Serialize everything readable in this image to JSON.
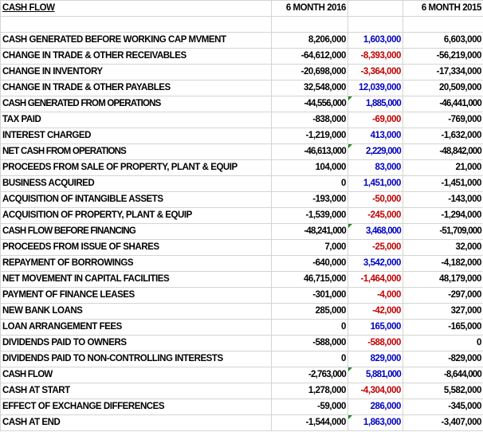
{
  "header": {
    "title": "CASH FLOW",
    "col1": "6 MONTH 2016",
    "col2": "",
    "col3": "6 MONTH 2015"
  },
  "colors": {
    "positive_diff": "#0000c0",
    "negative_diff": "#c00000",
    "comment_marker": "#1e8a1e"
  },
  "rows": [
    {
      "label": "CASH GENERATED BEFORE WORKING CAP MVMENT",
      "y2016": "8,206,000",
      "diff": "1,603,000",
      "y2015": "6,603,000"
    },
    {
      "label": "CHANGE IN TRADE & OTHER RECEIVABLES",
      "y2016": "-64,612,000",
      "diff": "-8,393,000",
      "y2015": "-56,219,000"
    },
    {
      "label": "CHANGE IN INVENTORY",
      "y2016": "-20,698,000",
      "diff": "-3,364,000",
      "y2015": "-17,334,000"
    },
    {
      "label": "CHANGE IN TRADE & OTHER PAYABLES",
      "y2016": "32,548,000",
      "diff": "12,039,000",
      "y2015": "20,509,000"
    },
    {
      "label": "CASH GENERATED FROM OPERATIONS",
      "y2016": "-44,556,000",
      "diff": "1,885,000",
      "y2015": "-46,441,000",
      "total": true
    },
    {
      "label": "TAX PAID",
      "y2016": "-838,000",
      "diff": "-69,000",
      "y2015": "-769,000"
    },
    {
      "label": "INTEREST CHARGED",
      "y2016": "-1,219,000",
      "diff": "413,000",
      "y2015": "-1,632,000"
    },
    {
      "label": "NET CASH FROM OPERATIONS",
      "y2016": "-46,613,000",
      "diff": "2,229,000",
      "y2015": "-48,842,000",
      "total": true
    },
    {
      "label": "PROCEEDS FROM SALE OF PROPERTY, PLANT & EQUIP",
      "y2016": "104,000",
      "diff": "83,000",
      "y2015": "21,000"
    },
    {
      "label": "BUSINESS ACQUIRED",
      "y2016": "0",
      "diff": "1,451,000",
      "y2015": "-1,451,000"
    },
    {
      "label": "ACQUISITION OF INTANGIBLE ASSETS",
      "y2016": "-193,000",
      "diff": "-50,000",
      "y2015": "-143,000"
    },
    {
      "label": "ACQUISITION OF PROPERTY, PLANT & EQUIP",
      "y2016": "-1,539,000",
      "diff": "-245,000",
      "y2015": "-1,294,000"
    },
    {
      "label": "CASH FLOW BEFORE FINANCING",
      "y2016": "-48,241,000",
      "diff": "3,468,000",
      "y2015": "-51,709,000",
      "total": true
    },
    {
      "label": "PROCEEDS FROM ISSUE OF SHARES",
      "y2016": "7,000",
      "diff": "-25,000",
      "y2015": "32,000"
    },
    {
      "label": "REPAYMENT OF BORROWINGS",
      "y2016": "-640,000",
      "diff": "3,542,000",
      "y2015": "-4,182,000"
    },
    {
      "label": "NET MOVEMENT IN CAPITAL FACILITIES",
      "y2016": "46,715,000",
      "diff": "-1,464,000",
      "y2015": "48,179,000"
    },
    {
      "label": "PAYMENT OF FINANCE LEASES",
      "y2016": "-301,000",
      "diff": "-4,000",
      "y2015": "-297,000"
    },
    {
      "label": "NEW BANK LOANS",
      "y2016": "285,000",
      "diff": "-42,000",
      "y2015": "327,000"
    },
    {
      "label": "LOAN ARRANGEMENT FEES",
      "y2016": "0",
      "diff": "165,000",
      "y2015": "-165,000"
    },
    {
      "label": "DIVIDENDS PAID TO OWNERS",
      "y2016": "-588,000",
      "diff": "-588,000",
      "y2015": "0"
    },
    {
      "label": "DIVIDENDS PAID TO NON-CONTROLLING INTERESTS",
      "y2016": "0",
      "diff": "829,000",
      "y2015": "-829,000"
    },
    {
      "label": "CASH FLOW",
      "y2016": "-2,763,000",
      "diff": "5,881,000",
      "y2015": "-8,644,000",
      "total": true
    },
    {
      "label": "CASH AT START",
      "y2016": "1,278,000",
      "diff": "-4,304,000",
      "y2015": "5,582,000"
    },
    {
      "label": "EFFECT OF EXCHANGE DIFFERENCES",
      "y2016": "-59,000",
      "diff": "286,000",
      "y2015": "-345,000"
    },
    {
      "label": "CASH AT END",
      "y2016": "-1,544,000",
      "diff": "1,863,000",
      "y2015": "-3,407,000",
      "comment": true
    }
  ]
}
